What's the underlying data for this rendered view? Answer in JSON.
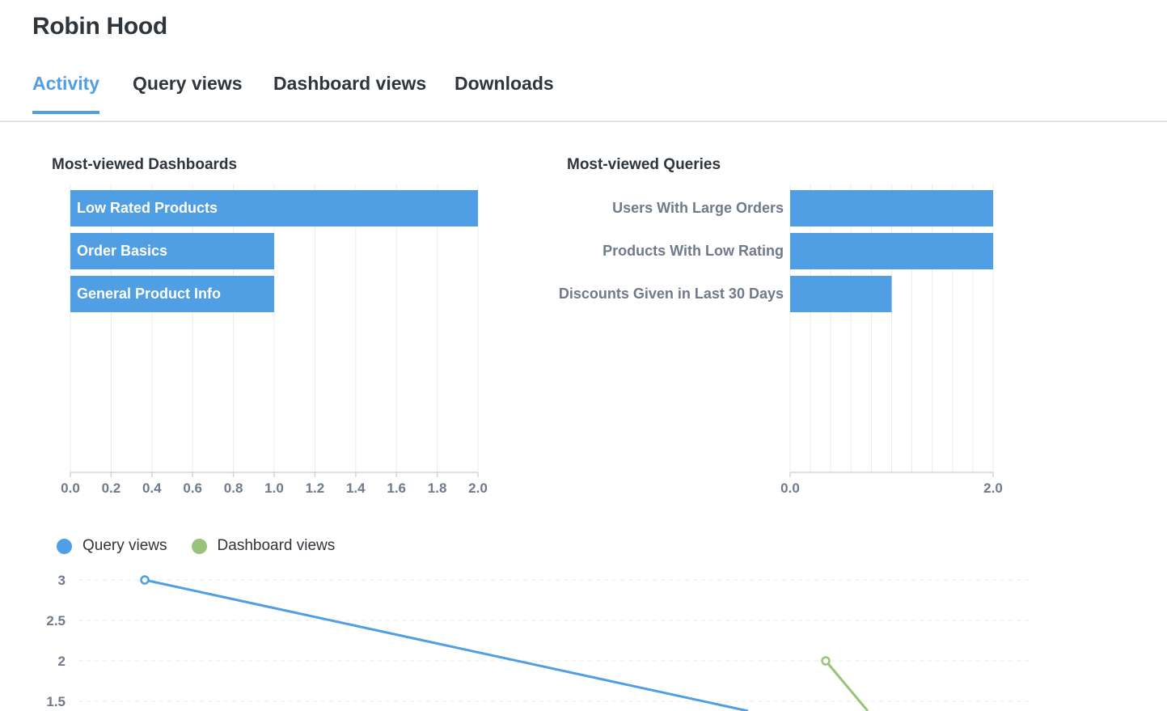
{
  "user": {
    "name": "Robin Hood"
  },
  "tabs": [
    {
      "label": "Activity",
      "active": true
    },
    {
      "label": "Query views",
      "active": false
    },
    {
      "label": "Dashboard views",
      "active": false
    },
    {
      "label": "Downloads",
      "active": false
    }
  ],
  "colors": {
    "accent": "#509ee3",
    "query_views": "#509ee3",
    "dashboard_views": "#98c379",
    "text": "#2e353b",
    "axis_text": "#6f7a8b"
  },
  "chart_data": [
    {
      "id": "dashboards",
      "type": "bar",
      "orientation": "horizontal",
      "title": "Most-viewed Dashboards",
      "categories": [
        "Low Rated Products",
        "Order Basics",
        "General Product Info"
      ],
      "values": [
        2,
        1,
        1
      ],
      "xlim": [
        0,
        2
      ],
      "xticks": [
        "0.0",
        "0.2",
        "0.4",
        "0.6",
        "0.8",
        "1.0",
        "1.2",
        "1.4",
        "1.6",
        "1.8",
        "2.0"
      ],
      "grid": true,
      "label_position": "inside"
    },
    {
      "id": "queries",
      "type": "bar",
      "orientation": "horizontal",
      "title": "Most-viewed Queries",
      "categories": [
        "Users With Large Orders",
        "Products With Low Rating",
        "Discounts Given in Last 30 Days"
      ],
      "values": [
        2,
        2,
        1
      ],
      "xlim": [
        0,
        2
      ],
      "xticks": [
        "0.0",
        "2.0"
      ],
      "grid": true,
      "label_position": "outside-left"
    },
    {
      "id": "views-over-time",
      "type": "line",
      "legend_position": "top-left",
      "yticks": [
        "1.5",
        "2",
        "2.5",
        "3"
      ],
      "series": [
        {
          "name": "Query views",
          "values": [
            3
          ]
        },
        {
          "name": "Dashboard views",
          "values": [
            2
          ]
        }
      ]
    }
  ]
}
